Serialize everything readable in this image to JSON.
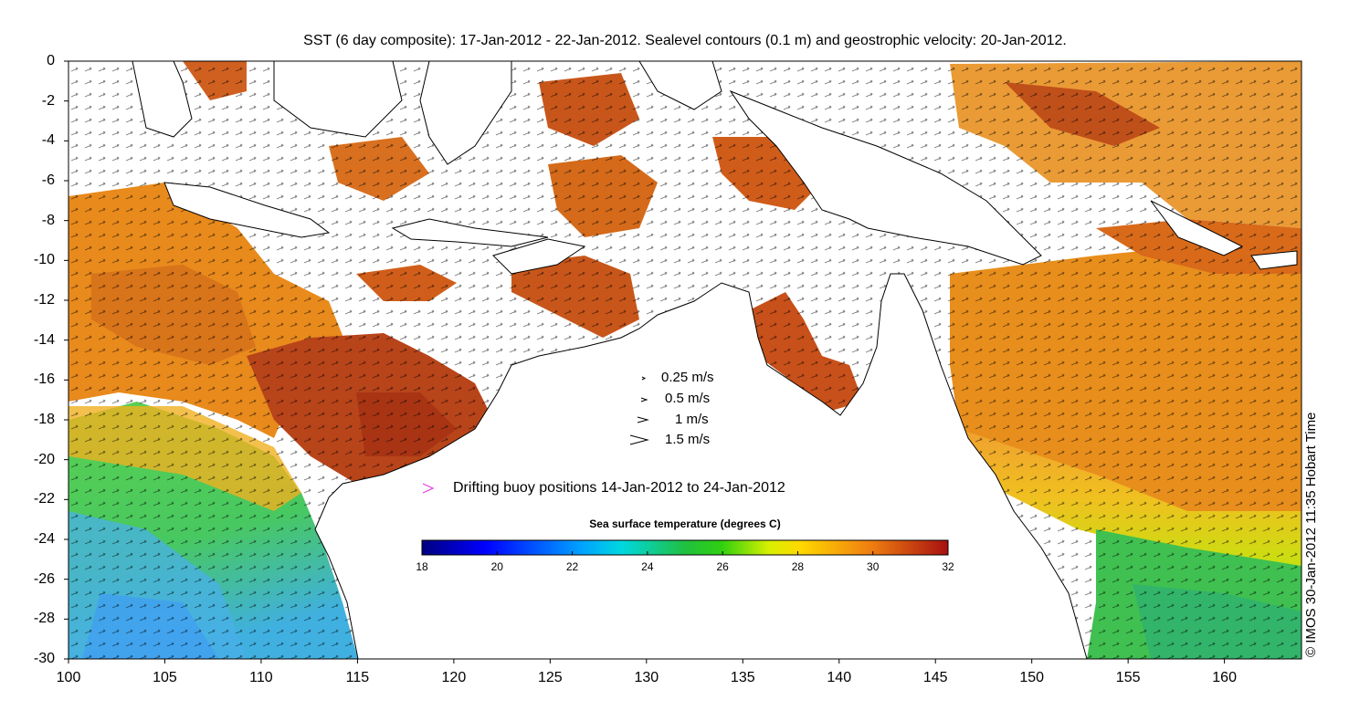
{
  "title": "SST (6 day composite): 17-Jan-2012 - 22-Jan-2012. Sealevel contours (0.1 m) and geostrophic velocity: 20-Jan-2012.",
  "credit": "© IMOS 30-Jan-2012 11:35 Hobart Time",
  "axes": {
    "xlim": [
      100,
      164
    ],
    "ylim": [
      -30,
      0
    ],
    "x_ticks": [
      "100",
      "105",
      "110",
      "115",
      "120",
      "125",
      "130",
      "135",
      "140",
      "145",
      "150",
      "155",
      "160"
    ],
    "y_ticks": [
      "0",
      "-2",
      "-4",
      "-6",
      "-8",
      "-10",
      "-12",
      "-14",
      "-16",
      "-18",
      "-20",
      "-22",
      "-24",
      "-26",
      "-28",
      "-30"
    ]
  },
  "velocity_legend": [
    {
      "label": "0.25 m/s",
      "speed": 0.25
    },
    {
      "label": "0.5 m/s",
      "speed": 0.5
    },
    {
      "label": "1 m/s",
      "speed": 1
    },
    {
      "label": "1.5 m/s",
      "speed": 1.5
    }
  ],
  "buoy_legend": {
    "label": "Drifting buoy positions 14-Jan-2012 to 24-Jan-2012",
    "color": "#e040e0"
  },
  "colorbar": {
    "title": "Sea surface temperature (degrees C)",
    "range": [
      18,
      32
    ],
    "ticks": [
      "18",
      "20",
      "22",
      "24",
      "26",
      "28",
      "30",
      "32"
    ],
    "colormap": "jet"
  },
  "colors": {
    "land": "#ffffff",
    "coast": "#000000",
    "contour": "#e8e8e8"
  }
}
